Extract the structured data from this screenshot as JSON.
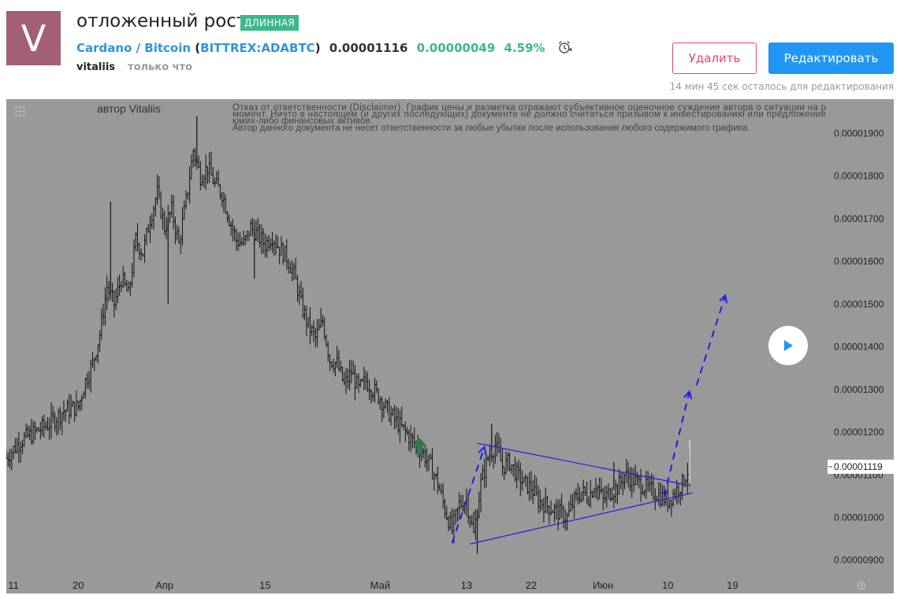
{
  "header": {
    "avatar_letter": "V",
    "title": "отложенный рост",
    "badge": "ДЛИННАЯ",
    "symbol_name": "Cardano / Bitcoin",
    "exchange_ticker": "BITTREX:ADABTC",
    "price": "0.00001116",
    "change": "0.00000049",
    "change_pct": "4.59%",
    "author": "vitaliis",
    "time": "только что",
    "delete_label": "Удалить",
    "edit_label": "Редактировать",
    "edit_note": "14 мин 45 сек осталось для редактирования",
    "alarm_icon": "alarm-clock-icon"
  },
  "colors": {
    "chart_bg": "#999999",
    "trendline": "#1e1ee6",
    "arrow": "#1e1ee6",
    "accent": "#2196f3",
    "positive": "#3cb88a",
    "delete": "#e0496a"
  },
  "chart_data": {
    "type": "bar",
    "title": "",
    "author_label": "автор Vitaliis",
    "disclaimer": [
      "Отказ от ответственности (Disclaimer). График цены и разметка отражают субъективное оценочное суждение автора о ситуации на р",
      "момент. Ничто в настоящем (и других последующих) документе не должно считаться призывом к инвестированию или предложение",
      "каких-либо финансовых активов.",
      "Автор данного документа не несет ответственности за любые убытки после использования любого содержимого графика."
    ],
    "y_ticks": [
      "0.00001900",
      "0.00001800",
      "0.00001700",
      "0.00001600",
      "0.00001500",
      "0.00001400",
      "0.00001300",
      "0.00001200",
      "0.00001100",
      "0.00001000",
      "0.00000900"
    ],
    "y_tick_values": [
      1.9e-05,
      1.8e-05,
      1.7e-05,
      1.6e-05,
      1.5e-05,
      1.4e-05,
      1.3e-05,
      1.2e-05,
      1.1e-05,
      1e-05,
      9e-06
    ],
    "ylim": [
      8.7e-06,
      1.98e-05
    ],
    "x_ticks": [
      {
        "label": "11",
        "day": 0
      },
      {
        "label": "20",
        "day": 9
      },
      {
        "label": "Апр",
        "day": 21
      },
      {
        "label": "15",
        "day": 35
      },
      {
        "label": "Май",
        "day": 51
      },
      {
        "label": "13",
        "day": 63
      },
      {
        "label": "22",
        "day": 72
      },
      {
        "label": "Июн",
        "day": 82
      },
      {
        "label": "10",
        "day": 91
      },
      {
        "label": "19",
        "day": 100
      }
    ],
    "xlim": [
      -1,
      113
    ],
    "last_price_label": "0.00001119",
    "last_price": 1.119e-05,
    "close_path": [
      [
        -1,
        1.14e-05
      ],
      [
        1,
        1.18e-05
      ],
      [
        3,
        1.2e-05
      ],
      [
        5,
        1.22e-05
      ],
      [
        7,
        1.25e-05
      ],
      [
        9,
        1.26e-05
      ],
      [
        10,
        1.32e-05
      ],
      [
        11,
        1.36e-05
      ],
      [
        12,
        1.43e-05
      ],
      [
        13,
        1.54e-05
      ],
      [
        14,
        1.5e-05
      ],
      [
        15,
        1.56e-05
      ],
      [
        16,
        1.52e-05
      ],
      [
        17,
        1.65e-05
      ],
      [
        18,
        1.62e-05
      ],
      [
        19,
        1.7e-05
      ],
      [
        20,
        1.76e-05
      ],
      [
        21,
        1.68e-05
      ],
      [
        22,
        1.72e-05
      ],
      [
        23,
        1.64e-05
      ],
      [
        24,
        1.74e-05
      ],
      [
        25,
        1.86e-05
      ],
      [
        26,
        1.8e-05
      ],
      [
        27,
        1.82e-05
      ],
      [
        28,
        1.78e-05
      ],
      [
        29,
        1.76e-05
      ],
      [
        30,
        1.7e-05
      ],
      [
        31,
        1.65e-05
      ],
      [
        32,
        1.64e-05
      ],
      [
        33,
        1.68e-05
      ],
      [
        34,
        1.66e-05
      ],
      [
        35,
        1.64e-05
      ],
      [
        36,
        1.66e-05
      ],
      [
        37,
        1.63e-05
      ],
      [
        38,
        1.61e-05
      ],
      [
        39,
        1.57e-05
      ],
      [
        40,
        1.5e-05
      ],
      [
        41,
        1.45e-05
      ],
      [
        42,
        1.42e-05
      ],
      [
        43,
        1.46e-05
      ],
      [
        44,
        1.37e-05
      ],
      [
        45,
        1.36e-05
      ],
      [
        46,
        1.31e-05
      ],
      [
        47,
        1.34e-05
      ],
      [
        48,
        1.3e-05
      ],
      [
        49,
        1.32e-05
      ],
      [
        50,
        1.3e-05
      ],
      [
        51,
        1.28e-05
      ],
      [
        52,
        1.25e-05
      ],
      [
        53,
        1.23e-05
      ],
      [
        54,
        1.21e-05
      ],
      [
        55,
        1.19e-05
      ],
      [
        56,
        1.17e-05
      ],
      [
        57,
        1.15e-05
      ],
      [
        58,
        1.12e-05
      ],
      [
        59,
        1.08e-05
      ],
      [
        60,
        1.02e-05
      ],
      [
        61,
        9.7e-06
      ],
      [
        62,
        1.03e-05
      ],
      [
        63,
        1.04e-05
      ],
      [
        64,
        9.6e-06
      ],
      [
        65,
        1.08e-05
      ],
      [
        66,
        1.14e-05
      ],
      [
        67,
        1.17e-05
      ],
      [
        68,
        1.12e-05
      ],
      [
        69,
        1.13e-05
      ],
      [
        70,
        1.1e-05
      ],
      [
        71,
        1.08e-05
      ],
      [
        72,
        1.07e-05
      ],
      [
        73,
        1.04e-05
      ],
      [
        74,
        1.03e-05
      ],
      [
        75,
        1.02e-05
      ],
      [
        76,
        1.01e-05
      ],
      [
        77,
        1e-05
      ],
      [
        78,
        1.04e-05
      ],
      [
        79,
        1.06e-05
      ],
      [
        80,
        1.05e-05
      ],
      [
        81,
        1.08e-05
      ],
      [
        82,
        1.04e-05
      ],
      [
        83,
        1.06e-05
      ],
      [
        84,
        1.07e-05
      ],
      [
        85,
        1.1e-05
      ],
      [
        86,
        1.09e-05
      ],
      [
        87,
        1.08e-05
      ],
      [
        88,
        1.07e-05
      ],
      [
        89,
        1.06e-05
      ],
      [
        90,
        1.05e-05
      ],
      [
        91,
        1.04e-05
      ],
      [
        92,
        1.06e-05
      ],
      [
        93,
        1.08e-05
      ],
      [
        94,
        1.119e-05
      ]
    ],
    "spikes": [
      {
        "day": 13.5,
        "value": 1.74e-05
      },
      {
        "day": 21.5,
        "value": 1.5e-05
      },
      {
        "day": 25.5,
        "value": 1.94e-05
      },
      {
        "day": 33.5,
        "value": 1.56e-05
      },
      {
        "day": 66.5,
        "value": 1.22e-05
      },
      {
        "day": 64.5,
        "value": 9.15e-06
      },
      {
        "day": 83.5,
        "value": 1.13e-05
      }
    ],
    "trendlines": [
      {
        "from": [
          64.5,
          1.174e-05
        ],
        "to": [
          93.5,
          1.077e-05
        ]
      },
      {
        "from": [
          63.5,
          9.38e-06
        ],
        "to": [
          94.5,
          1.058e-05
        ]
      }
    ],
    "dashed_arrows": [
      {
        "from": [
          61,
          9.4e-06
        ],
        "to": [
          65.5,
          1.165e-05
        ]
      },
      {
        "from": [
          90.5,
          1.05e-05
        ],
        "to": [
          94,
          1.295e-05
        ]
      },
      {
        "from": [
          95,
          1.31e-05
        ],
        "to": [
          99,
          1.52e-05
        ]
      }
    ],
    "marker_arrow": {
      "day": 56.5,
      "value": 1.168e-05,
      "color": "#2f7a48"
    }
  }
}
